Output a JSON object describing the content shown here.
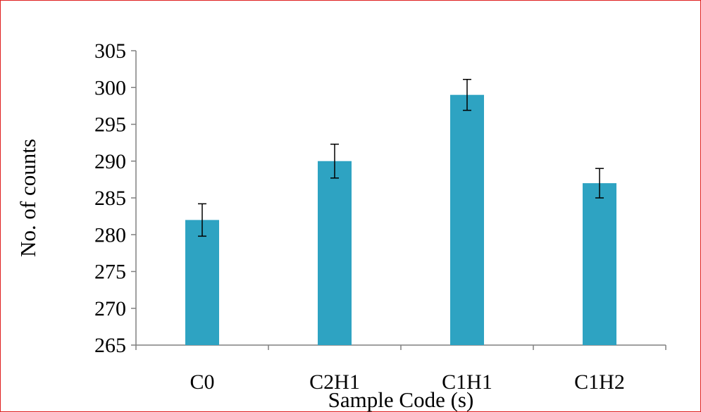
{
  "chart_data": {
    "type": "bar",
    "title": "",
    "xlabel": "Sample Code (s)",
    "ylabel": "No. of counts",
    "categories": [
      "C0",
      "C2H1",
      "C1H1",
      "C1H2"
    ],
    "series": [
      {
        "values": [
          282,
          290,
          299,
          287
        ],
        "errors": [
          2.2,
          2.3,
          2.1,
          2.0
        ],
        "color": "#2ea3c2"
      }
    ],
    "ylim": [
      265,
      305
    ],
    "yticks": [
      "265",
      "270",
      "275",
      "280",
      "285",
      "290",
      "295",
      "300",
      "305"
    ],
    "grid": false,
    "legend": "none",
    "frame_color": "#e02020",
    "axis_color": "#808080"
  }
}
